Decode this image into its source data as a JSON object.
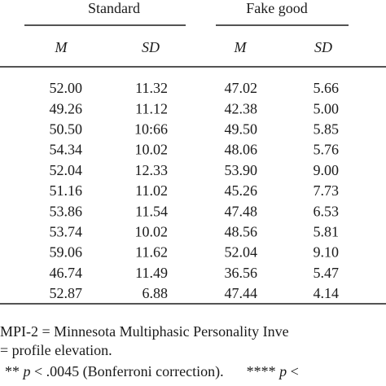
{
  "table": {
    "groups": [
      "Standard",
      "Fake good"
    ],
    "columns": [
      "M",
      "SD",
      "M",
      "SD"
    ],
    "rows": [
      [
        "52.00",
        "11.32",
        "47.02",
        "5.66"
      ],
      [
        "49.26",
        "11.12",
        "42.38",
        "5.00"
      ],
      [
        "50.50",
        "10:66",
        "49.50",
        "5.85"
      ],
      [
        "54.34",
        "10.02",
        "48.06",
        "5.76"
      ],
      [
        "52.04",
        "12.33",
        "53.90",
        "9.00"
      ],
      [
        "51.16",
        "11.02",
        "45.26",
        "7.73"
      ],
      [
        "53.86",
        "11.54",
        "47.48",
        "6.53"
      ],
      [
        "53.74",
        "10.02",
        "48.56",
        "5.81"
      ],
      [
        "59.06",
        "11.62",
        "52.04",
        "9.10"
      ],
      [
        "46.74",
        "11.49",
        "36.56",
        "5.47"
      ],
      [
        "52.87",
        "6.88",
        "47.44",
        "4.14"
      ]
    ]
  },
  "notes": {
    "line1": "MPI-2 = Minnesota Multiphasic Personality Inve",
    "line2": "= profile elevation.",
    "line3": [
      "** ",
      "p",
      " < .0045 (Bonferroni correction).",
      "**** ",
      "p",
      " <"
    ]
  }
}
